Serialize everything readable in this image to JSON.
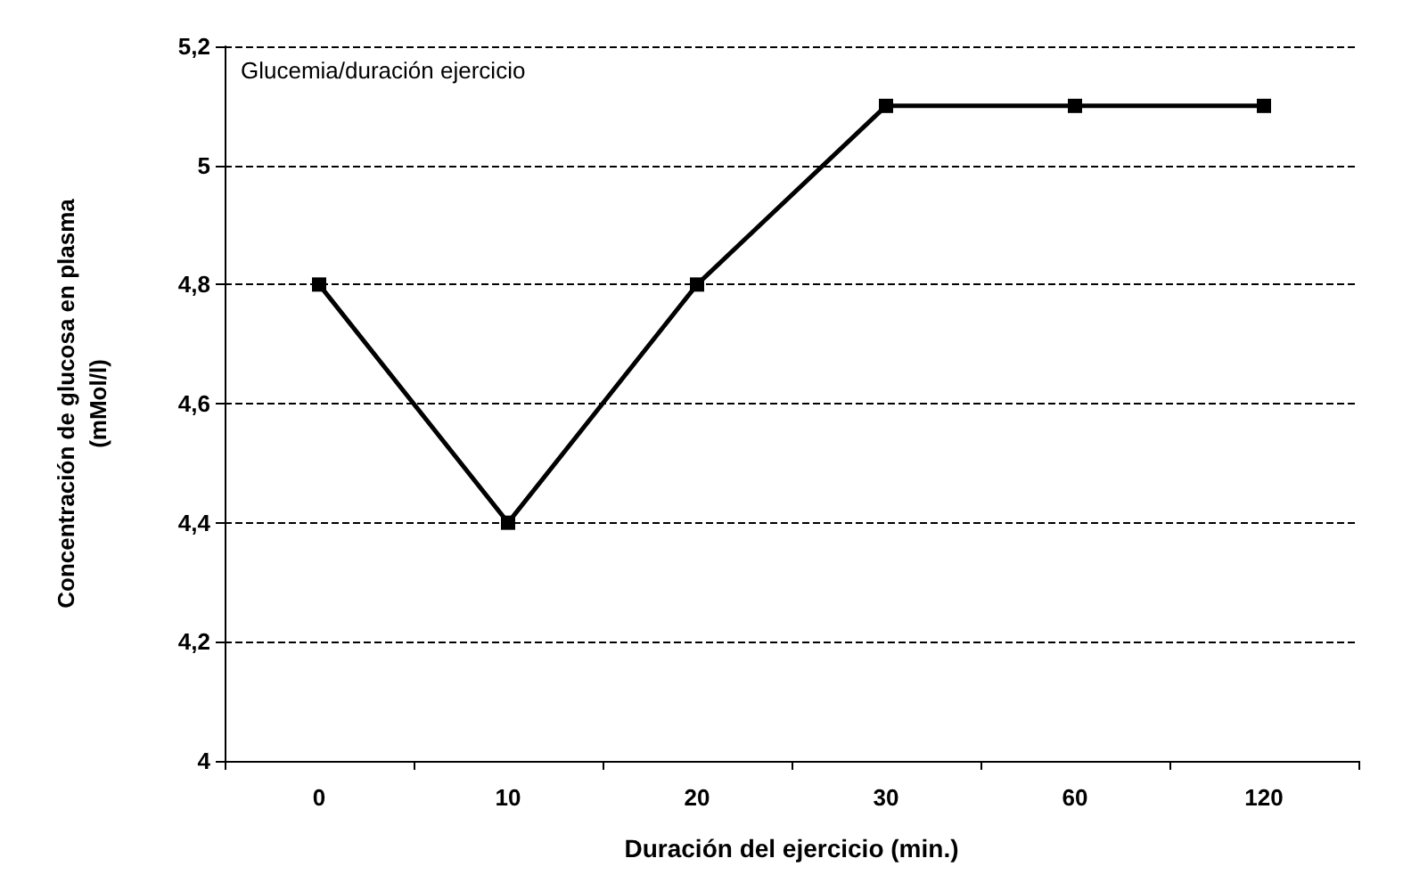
{
  "chart_data": {
    "type": "line",
    "title": "Glucemia/duración ejercicio",
    "xlabel": "Duración del ejercicio (min.)",
    "ylabel": "Concentración de glucosa en plasma\n(mMol/l)",
    "categories": [
      "0",
      "10",
      "20",
      "30",
      "60",
      "120"
    ],
    "series": [
      {
        "color": "#000000",
        "values": [
          4.8,
          4.4,
          4.8,
          5.1,
          5.1,
          5.1
        ]
      }
    ],
    "ylim": [
      4,
      5.2
    ],
    "yticks": [
      {
        "value": 4,
        "label": "4"
      },
      {
        "value": 4.2,
        "label": "4,2"
      },
      {
        "value": 4.4,
        "label": "4,4"
      },
      {
        "value": 4.6,
        "label": "4,6"
      },
      {
        "value": 4.8,
        "label": "4,8"
      },
      {
        "value": 5,
        "label": "5"
      },
      {
        "value": 5.2,
        "label": "5,2"
      }
    ],
    "grid": "y",
    "marker": "square",
    "line_style": "solid"
  }
}
